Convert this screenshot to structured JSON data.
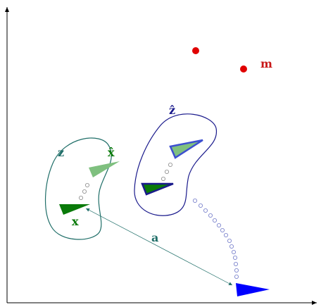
{
  "labels": {
    "m": "m",
    "z_hat": "ẑ",
    "z": "z",
    "x_hat": "x̂",
    "x": "x",
    "a": "a"
  },
  "colors": {
    "teal": "#1f6e68",
    "navy": "#1a1a8c",
    "red": "#e00000",
    "green_dark": "#0a7a0a",
    "green_light": "#7fc07f",
    "blue": "#0000ff",
    "blue_mid": "#3d4fd0",
    "dot_grey": "#888888",
    "dot_blue": "#6f78c8"
  }
}
